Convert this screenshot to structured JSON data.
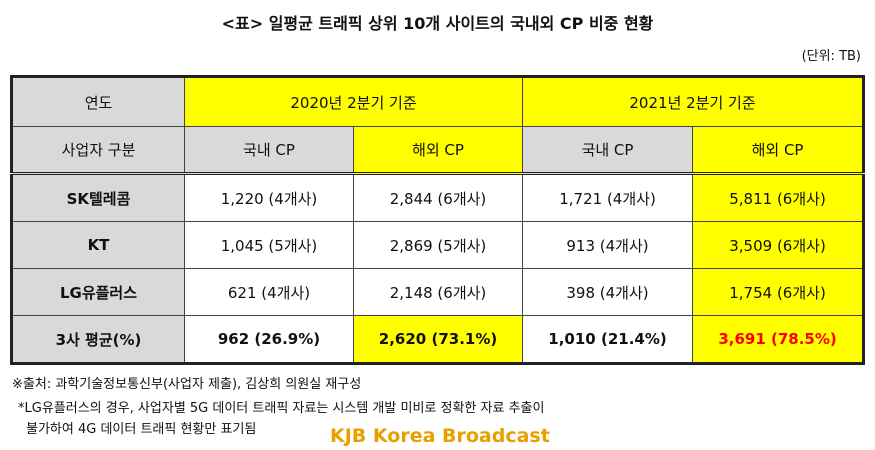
{
  "header": {
    "title": "<표> 일평균 트래픽 상위 10개 사이트의 국내외 CP 비중 현황",
    "unit": "(단위: TB)"
  },
  "table": {
    "head": [
      [
        "연도",
        "2020년 2분기 기준",
        "2021년 2분기 기준"
      ],
      [
        "사업자 구분",
        "국내 CP",
        "해외 CP",
        "국내 CP",
        "해외 CP"
      ]
    ],
    "rows": [
      [
        "SK텔레콤",
        "1,220 (4개사)",
        "2,844 (6개사)",
        "1,721 (4개사)",
        "5,811 (6개사)"
      ],
      [
        "KT",
        "1,045 (5개사)",
        "2,869 (5개사)",
        "913 (4개사)",
        "3,509 (6개사)"
      ],
      [
        "LG유플러스",
        "621 (4개사)",
        "2,148 (6개사)",
        "398 (4개사)",
        "1,754 (6개사)"
      ],
      [
        "3사 평균(%)",
        "962 (26.9%)",
        "2,620 (73.1%)",
        "1,010 (21.4%)",
        "3,691 (78.5%)"
      ]
    ]
  },
  "footnotes": [
    "※출처: 과학기술정보통신부(사업자 제출), 김상희 의원실 재구성",
    "*LG유플러스의 경우, 사업자별 5G 데이터 트래픽 자료는 시스템 개발 미비로 정확한 자료 추출이",
    "불가하여 4G 데이터 트래픽 현황만 표기됨"
  ],
  "watermark": "KJB Korea Broadcast"
}
